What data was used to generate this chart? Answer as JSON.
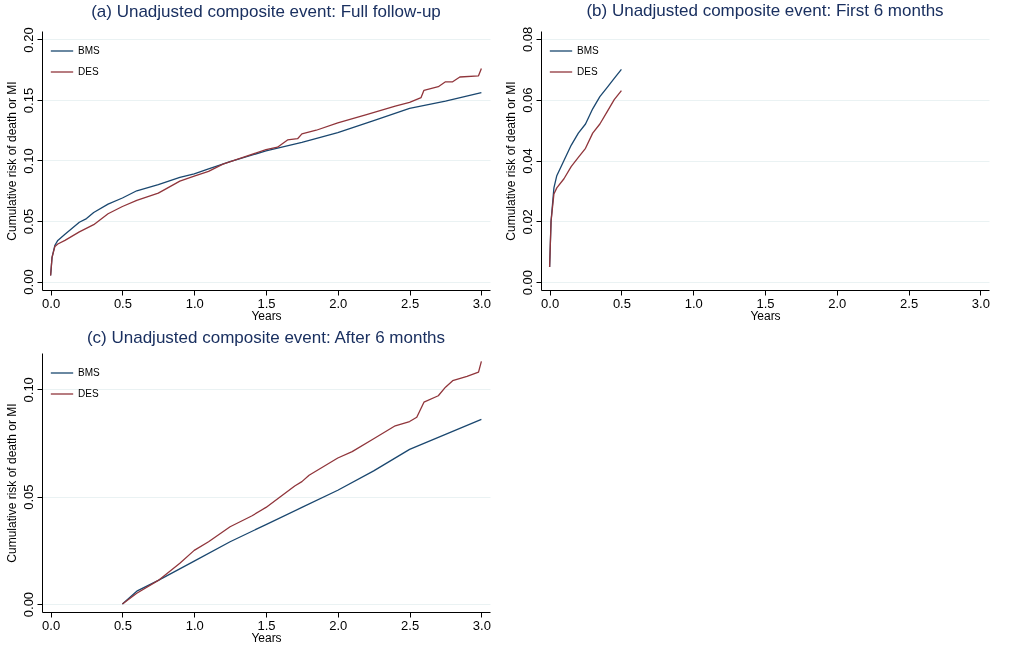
{
  "chart_data": [
    {
      "type": "line",
      "title": "(a) Unadjusted composite event: Full follow-up",
      "ylabel": "Cumulative risk of death or MI",
      "xlim": [
        -0.06,
        3.06
      ],
      "xticks": [
        {
          "value": 0,
          "label": "0.0"
        },
        0.5,
        {
          "value": 1,
          "label": "1.0"
        },
        1.5,
        {
          "value": 2,
          "label": "2.0"
        },
        2.5,
        {
          "value": 3,
          "label": "3.0"
        }
      ],
      "ylim": [
        -0.007,
        0.207
      ],
      "yticks": [
        {
          "value": 0,
          "label": "0.00"
        },
        0.05,
        {
          "value": 0.1,
          "label": "0.10"
        },
        0.15,
        {
          "value": 0.2,
          "label": "0.20"
        }
      ],
      "xlabel": "Years",
      "grid": "y",
      "legend": "top left",
      "series": [
        {
          "name": "BMS",
          "color": "#1a476f",
          "x": [
            0,
            0.01,
            0.03,
            0.05,
            0.1,
            0.2,
            0.25,
            0.3,
            0.4,
            0.5,
            0.6,
            0.75,
            0.9,
            1.0,
            1.1,
            1.25,
            1.5,
            1.75,
            2.0,
            2.25,
            2.5,
            2.75,
            3.0
          ],
          "values": [
            0.005,
            0.02,
            0.03,
            0.034,
            0.039,
            0.049,
            0.052,
            0.057,
            0.064,
            0.069,
            0.075,
            0.08,
            0.086,
            0.089,
            0.093,
            0.099,
            0.108,
            0.115,
            0.123,
            0.133,
            0.143,
            0.149,
            0.156
          ]
        },
        {
          "name": "DES",
          "color": "#90353b",
          "x": [
            0,
            0.01,
            0.03,
            0.05,
            0.1,
            0.2,
            0.3,
            0.4,
            0.5,
            0.6,
            0.75,
            0.9,
            1.0,
            1.1,
            1.2,
            1.35,
            1.5,
            1.58,
            1.65,
            1.72,
            1.75,
            1.85,
            2.0,
            2.2,
            2.4,
            2.5,
            2.58,
            2.6,
            2.7,
            2.75,
            2.8,
            2.85,
            2.98,
            3.0
          ],
          "values": [
            0.005,
            0.02,
            0.029,
            0.031,
            0.034,
            0.041,
            0.047,
            0.056,
            0.062,
            0.067,
            0.073,
            0.083,
            0.087,
            0.091,
            0.097,
            0.103,
            0.109,
            0.111,
            0.117,
            0.118,
            0.122,
            0.125,
            0.131,
            0.138,
            0.145,
            0.148,
            0.152,
            0.158,
            0.161,
            0.165,
            0.165,
            0.169,
            0.17,
            0.176
          ]
        }
      ]
    },
    {
      "type": "line",
      "title": "(b) Unadjusted composite event: First 6 months",
      "xlabel": "Years",
      "ylabel": "Cumulative risk of death or MI",
      "xlim": [
        -0.06,
        3.06
      ],
      "xticks": [
        {
          "value": 0,
          "label": "0.0"
        },
        0.5,
        {
          "value": 1,
          "label": "1.0"
        },
        1.5,
        {
          "value": 2,
          "label": "2.0"
        },
        2.5,
        {
          "value": 3,
          "label": "3.0"
        }
      ],
      "ylim": [
        -0.0026,
        0.0826
      ],
      "yticks": [
        {
          "value": 0,
          "label": "0.00"
        },
        0.02,
        0.04,
        0.06,
        0.08
      ],
      "grid": "y",
      "legend": "top left",
      "series": [
        {
          "name": "BMS",
          "color": "#1a476f",
          "x": [
            0,
            0.01,
            0.03,
            0.05,
            0.1,
            0.15,
            0.2,
            0.25,
            0.3,
            0.35,
            0.4,
            0.45,
            0.5
          ],
          "values": [
            0.005,
            0.02,
            0.031,
            0.035,
            0.04,
            0.045,
            0.049,
            0.052,
            0.057,
            0.061,
            0.064,
            0.067,
            0.07
          ]
        },
        {
          "name": "DES",
          "color": "#90353b",
          "x": [
            0,
            0.01,
            0.03,
            0.05,
            0.1,
            0.15,
            0.2,
            0.25,
            0.3,
            0.35,
            0.4,
            0.45,
            0.5
          ],
          "values": [
            0.005,
            0.02,
            0.029,
            0.031,
            0.034,
            0.038,
            0.041,
            0.044,
            0.049,
            0.052,
            0.056,
            0.06,
            0.063
          ]
        }
      ]
    },
    {
      "type": "line",
      "title": "(c) Unadjusted composite event: After 6 months",
      "xlabel": "Years",
      "ylabel": "Cumulative risk of death or MI",
      "xlim": [
        -0.06,
        3.06
      ],
      "xticks": [
        {
          "value": 0,
          "label": "0.0"
        },
        0.5,
        {
          "value": 1,
          "label": "1.0"
        },
        1.5,
        {
          "value": 2,
          "label": "2.0"
        },
        2.5,
        {
          "value": 3,
          "label": "3.0"
        }
      ],
      "ylim": [
        -0.0037,
        0.1169
      ],
      "yticks": [
        {
          "value": 0,
          "label": "0.00"
        },
        0.05,
        {
          "value": 0.1,
          "label": "0.10"
        }
      ],
      "grid": "y",
      "legend": "top left",
      "series": [
        {
          "name": "BMS",
          "color": "#1a476f",
          "x": [
            0.5,
            0.6,
            0.75,
            1.0,
            1.25,
            1.5,
            1.75,
            2.0,
            2.25,
            2.5,
            2.75,
            3.0
          ],
          "values": [
            0,
            0.006,
            0.011,
            0.02,
            0.029,
            0.037,
            0.045,
            0.053,
            0.062,
            0.072,
            0.079,
            0.086
          ]
        },
        {
          "name": "DES",
          "color": "#90353b",
          "x": [
            0.5,
            0.6,
            0.75,
            0.9,
            1.0,
            1.1,
            1.25,
            1.4,
            1.5,
            1.6,
            1.7,
            1.75,
            1.8,
            2.0,
            2.1,
            2.25,
            2.4,
            2.5,
            2.55,
            2.6,
            2.7,
            2.75,
            2.8,
            2.9,
            2.98,
            3.0
          ],
          "values": [
            0,
            0.005,
            0.011,
            0.019,
            0.025,
            0.029,
            0.036,
            0.041,
            0.045,
            0.05,
            0.055,
            0.057,
            0.06,
            0.068,
            0.071,
            0.077,
            0.083,
            0.085,
            0.087,
            0.094,
            0.097,
            0.101,
            0.104,
            0.106,
            0.108,
            0.113
          ]
        }
      ]
    }
  ]
}
